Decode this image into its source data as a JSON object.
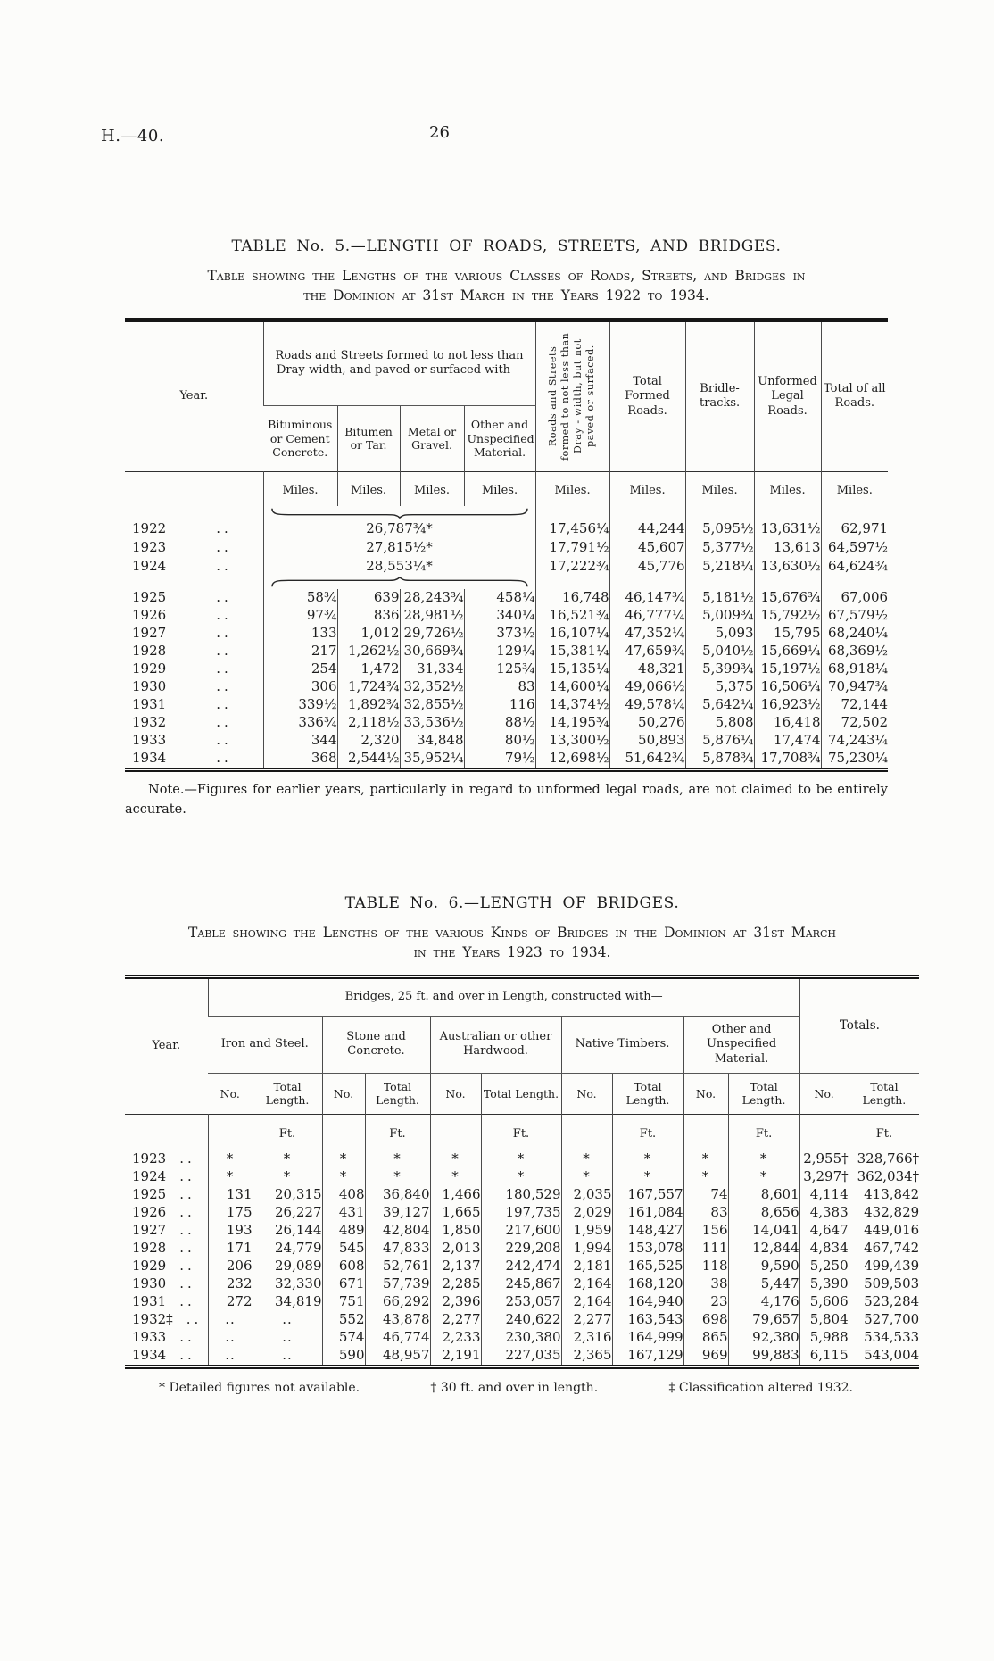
{
  "page": {
    "doc_ref": "H.—40.",
    "page_number": "26"
  },
  "table5": {
    "title": "TABLE No. 5.—LENGTH OF ROADS, STREETS, AND BRIDGES.",
    "subtitle_line1": "Table showing the Lengths of the various Classes of Roads, Streets, and Bridges in",
    "subtitle_line2": "the Dominion at 31st March in the Years 1922 to 1934.",
    "year_dots": "..",
    "unit": "Miles.",
    "headers": {
      "year": "Year.",
      "paved_group": "Roads and Streets formed to not less than Dray-width, and paved or surfaced with—",
      "paved_cols": [
        "Bituminous or Cement Concrete.",
        "Bitumen or Tar.",
        "Metal or Gravel.",
        "Other and Unspecified Material."
      ],
      "unpaved": "Roads and Streets formed to not less than Dray - width, but not paved or surfaced.",
      "total_formed": "Total Formed Roads.",
      "bridle": "Bridle-tracks.",
      "unformed_legal": "Unformed Legal Roads.",
      "total_all": "Total of all Roads."
    },
    "rows_merged": [
      {
        "year": "1922",
        "paved_total": "26,787¾*",
        "rest": [
          "17,456¼",
          "44,244",
          "5,095½",
          "13,631½",
          "62,971"
        ]
      },
      {
        "year": "1923",
        "paved_total": "27,815½*",
        "rest": [
          "17,791½",
          "45,607",
          "5,377½",
          "13,613",
          "64,597½"
        ]
      },
      {
        "year": "1924",
        "paved_total": "28,553¼*",
        "rest": [
          "17,222¾",
          "45,776",
          "5,218¼",
          "13,630½",
          "64,624¾"
        ]
      }
    ],
    "rows": [
      {
        "year": "1925",
        "paved": [
          "58¾",
          "639",
          "28,243¾",
          "458¼"
        ],
        "rest": [
          "16,748",
          "46,147¾",
          "5,181½",
          "15,676¾",
          "67,006"
        ]
      },
      {
        "year": "1926",
        "paved": [
          "97¾",
          "836",
          "28,981½",
          "340¼"
        ],
        "rest": [
          "16,521¾",
          "46,777¼",
          "5,009¾",
          "15,792½",
          "67,579½"
        ]
      },
      {
        "year": "1927",
        "paved": [
          "133",
          "1,012",
          "29,726½",
          "373½"
        ],
        "rest": [
          "16,107¼",
          "47,352¼",
          "5,093",
          "15,795",
          "68,240¼"
        ]
      },
      {
        "year": "1928",
        "paved": [
          "217",
          "1,262½",
          "30,669¾",
          "129¼"
        ],
        "rest": [
          "15,381¼",
          "47,659¾",
          "5,040½",
          "15,669¼",
          "68,369½"
        ]
      },
      {
        "year": "1929",
        "paved": [
          "254",
          "1,472",
          "31,334",
          "125¾"
        ],
        "rest": [
          "15,135¼",
          "48,321",
          "5,399¾",
          "15,197½",
          "68,918¼"
        ]
      },
      {
        "year": "1930",
        "paved": [
          "306",
          "1,724¾",
          "32,352½",
          "83"
        ],
        "rest": [
          "14,600¼",
          "49,066½",
          "5,375",
          "16,506¼",
          "70,947¾"
        ]
      },
      {
        "year": "1931",
        "paved": [
          "339½",
          "1,892¾",
          "32,855½",
          "116"
        ],
        "rest": [
          "14,374½",
          "49,578¼",
          "5,642¼",
          "16,923½",
          "72,144"
        ]
      },
      {
        "year": "1932",
        "paved": [
          "336¾",
          "2,118½",
          "33,536½",
          "88½"
        ],
        "rest": [
          "14,195¾",
          "50,276",
          "5,808",
          "16,418",
          "72,502"
        ]
      },
      {
        "year": "1933",
        "paved": [
          "344",
          "2,320",
          "34,848",
          "80½"
        ],
        "rest": [
          "13,300½",
          "50,893",
          "5,876¼",
          "17,474",
          "74,243¼"
        ]
      },
      {
        "year": "1934",
        "paved": [
          "368",
          "2,544½",
          "35,952¼",
          "79½"
        ],
        "rest": [
          "12,698½",
          "51,642¾",
          "5,878¾",
          "17,708¾",
          "75,230¼"
        ]
      }
    ],
    "note": "Note.—Figures for earlier years, particularly in regard to unformed legal roads, are not claimed to be entirely accurate."
  },
  "table6": {
    "title": "TABLE No. 6.—LENGTH OF BRIDGES.",
    "subtitle_line1": "Table showing the Lengths of the various Kinds of Bridges in the Dominion at 31st March",
    "subtitle_line2": "in the Years 1923 to 1934.",
    "year_dots": "..",
    "unit": "Ft.",
    "headers": {
      "year": "Year.",
      "group": "Bridges, 25 ft. and over in Length, constructed with—",
      "materials": [
        "Iron and Steel.",
        "Stone and Concrete.",
        "Australian or other Hardwood.",
        "Native Timbers.",
        "Other and Unspecified Material."
      ],
      "totals": "Totals.",
      "no": "No.",
      "len": "Total Length."
    },
    "rows": [
      {
        "year": "1923",
        "cells": [
          "*",
          "*",
          "*",
          "*",
          "*",
          "*",
          "*",
          "*",
          "*",
          "*",
          "2,955†",
          "328,766†"
        ]
      },
      {
        "year": "1924",
        "cells": [
          "*",
          "*",
          "*",
          "*",
          "*",
          "*",
          "*",
          "*",
          "*",
          "*",
          "3,297†",
          "362,034†"
        ]
      },
      {
        "year": "1925",
        "cells": [
          "131",
          "20,315",
          "408",
          "36,840",
          "1,466",
          "180,529",
          "2,035",
          "167,557",
          "74",
          "8,601",
          "4,114",
          "413,842"
        ]
      },
      {
        "year": "1926",
        "cells": [
          "175",
          "26,227",
          "431",
          "39,127",
          "1,665",
          "197,735",
          "2,029",
          "161,084",
          "83",
          "8,656",
          "4,383",
          "432,829"
        ]
      },
      {
        "year": "1927",
        "cells": [
          "193",
          "26,144",
          "489",
          "42,804",
          "1,850",
          "217,600",
          "1,959",
          "148,427",
          "156",
          "14,041",
          "4,647",
          "449,016"
        ]
      },
      {
        "year": "1928",
        "cells": [
          "171",
          "24,779",
          "545",
          "47,833",
          "2,013",
          "229,208",
          "1,994",
          "153,078",
          "111",
          "12,844",
          "4,834",
          "467,742"
        ]
      },
      {
        "year": "1929",
        "cells": [
          "206",
          "29,089",
          "608",
          "52,761",
          "2,137",
          "242,474",
          "2,181",
          "165,525",
          "118",
          "9,590",
          "5,250",
          "499,439"
        ]
      },
      {
        "year": "1930",
        "cells": [
          "232",
          "32,330",
          "671",
          "57,739",
          "2,285",
          "245,867",
          "2,164",
          "168,120",
          "38",
          "5,447",
          "5,390",
          "509,503"
        ]
      },
      {
        "year": "1931",
        "cells": [
          "272",
          "34,819",
          "751",
          "66,292",
          "2,396",
          "253,057",
          "2,164",
          "164,940",
          "23",
          "4,176",
          "5,606",
          "523,284"
        ]
      },
      {
        "year": "1932‡",
        "cells": [
          "..",
          "..",
          "552",
          "43,878",
          "2,277",
          "240,622",
          "2,277",
          "163,543",
          "698",
          "79,657",
          "5,804",
          "527,700"
        ]
      },
      {
        "year": "1933",
        "cells": [
          "..",
          "..",
          "574",
          "46,774",
          "2,233",
          "230,380",
          "2,316",
          "164,999",
          "865",
          "92,380",
          "5,988",
          "534,533"
        ]
      },
      {
        "year": "1934",
        "cells": [
          "..",
          "..",
          "590",
          "48,957",
          "2,191",
          "227,035",
          "2,365",
          "167,129",
          "969",
          "99,883",
          "6,115",
          "543,004"
        ]
      }
    ],
    "footnotes": [
      "* Detailed figures not available.",
      "† 30 ft. and over in length.",
      "‡ Classification altered 1932."
    ]
  }
}
